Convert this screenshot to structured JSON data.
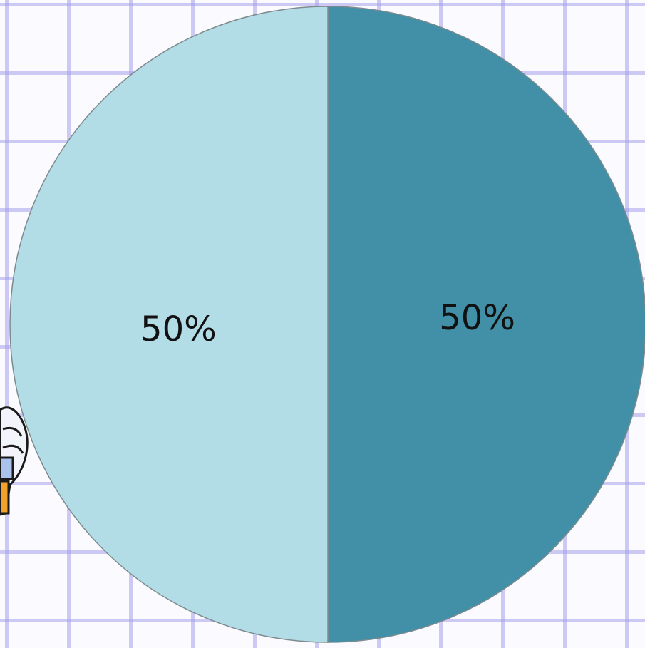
{
  "chart_data": {
    "type": "pie",
    "title": "",
    "slices": [
      {
        "label": "50%",
        "value": 50,
        "color": "#4190a8"
      },
      {
        "label": "50%",
        "value": 50,
        "color": "#b2dce6"
      }
    ],
    "legend": "none",
    "grid": true,
    "background": "graph-paper",
    "background_line_color": "#a9a4ee",
    "edge_color": "#7d8a8e"
  },
  "decorations": {
    "left_edge_icon": "cartoon-hand-pointer-icon"
  }
}
